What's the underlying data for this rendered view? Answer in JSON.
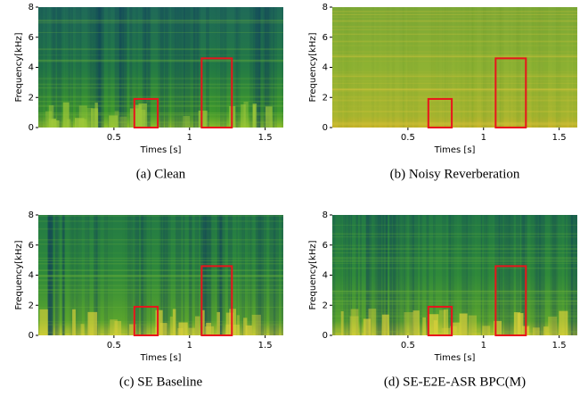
{
  "chart_data": [
    {
      "type": "spectrogram",
      "caption": "(a) Clean",
      "xlabel": "Times [s]",
      "ylabel": "Frequency[kHz]",
      "xlim": [
        0,
        1.62
      ],
      "xticks": [
        0.5,
        1,
        1.5
      ],
      "ylim": [
        0,
        8
      ],
      "yticks": [
        0,
        2,
        4,
        6,
        8
      ],
      "highlight_color": "#e8141c",
      "highlights": [
        {
          "x": [
            0.635,
            0.79
          ],
          "y": [
            0,
            1.9
          ]
        },
        {
          "x": [
            1.08,
            1.28
          ],
          "y": [
            0,
            4.6
          ]
        }
      ]
    },
    {
      "type": "spectrogram",
      "caption": "(b) Noisy Reverberation",
      "xlabel": "Times [s]",
      "ylabel": "Frequency[kHz]",
      "xlim": [
        0,
        1.62
      ],
      "xticks": [
        0.5,
        1,
        1.5
      ],
      "ylim": [
        0,
        8
      ],
      "yticks": [
        0,
        2,
        4,
        6,
        8
      ],
      "highlight_color": "#e8141c",
      "highlights": [
        {
          "x": [
            0.635,
            0.79
          ],
          "y": [
            0,
            1.9
          ]
        },
        {
          "x": [
            1.08,
            1.28
          ],
          "y": [
            0,
            4.6
          ]
        }
      ]
    },
    {
      "type": "spectrogram",
      "caption": "(c) SE Baseline",
      "xlabel": "Times [s]",
      "ylabel": "Frequency[kHz]",
      "xlim": [
        0,
        1.62
      ],
      "xticks": [
        0.5,
        1,
        1.5
      ],
      "ylim": [
        0,
        8
      ],
      "yticks": [
        0,
        2,
        4,
        6,
        8
      ],
      "highlight_color": "#e8141c",
      "highlights": [
        {
          "x": [
            0.635,
            0.79
          ],
          "y": [
            0,
            1.9
          ]
        },
        {
          "x": [
            1.08,
            1.28
          ],
          "y": [
            0,
            4.6
          ]
        }
      ]
    },
    {
      "type": "spectrogram",
      "caption": "(d) SE-E2E-ASR BPC(M)",
      "xlabel": "Times [s]",
      "ylabel": "Frequency[kHz]",
      "xlim": [
        0,
        1.62
      ],
      "xticks": [
        0.5,
        1,
        1.5
      ],
      "ylim": [
        0,
        8
      ],
      "yticks": [
        0,
        2,
        4,
        6,
        8
      ],
      "highlight_color": "#e8141c",
      "highlights": [
        {
          "x": [
            0.635,
            0.79
          ],
          "y": [
            0,
            1.9
          ]
        },
        {
          "x": [
            1.08,
            1.28
          ],
          "y": [
            0,
            4.6
          ]
        }
      ]
    }
  ]
}
